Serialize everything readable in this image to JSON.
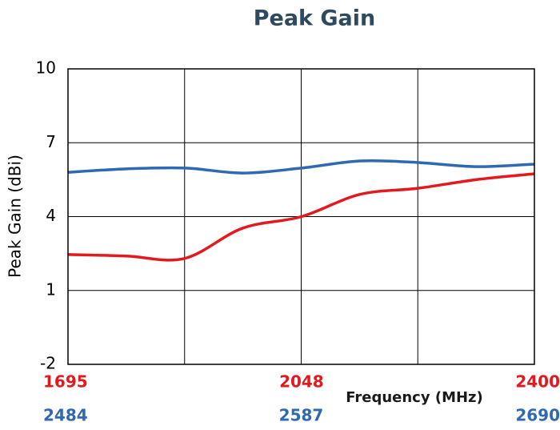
{
  "chart_data": {
    "type": "line",
    "title": "Peak Gain",
    "xlabel": "Frequency (MHz)",
    "ylabel": "Peak Gain (dBi)",
    "xlim": [
      1695,
      2400
    ],
    "xticks": [
      1695,
      2048,
      2400
    ],
    "x_color": "#e3191e",
    "x2lim": [
      2484,
      2690
    ],
    "x2ticks": [
      2484,
      2587,
      2690
    ],
    "x2_color": "#2f69b1",
    "xgrid": [
      1695,
      1871.25,
      2047.5,
      2223.75,
      2400
    ],
    "ylim": [
      -2,
      10
    ],
    "yticks": [
      -2,
      1,
      4,
      7,
      10
    ],
    "grid": true,
    "series": [
      {
        "color": "#e3191e",
        "axis": "x",
        "x": [
          1695,
          1783,
          1871,
          1959,
          2048,
          2136,
          2224,
          2312,
          2400
        ],
        "values": [
          2.46,
          2.4,
          2.3,
          3.53,
          4.0,
          4.9,
          5.15,
          5.5,
          5.74
        ]
      },
      {
        "color": "#2f69b1",
        "axis": "x2",
        "x": [
          2484,
          2510,
          2536,
          2561,
          2587,
          2613,
          2638,
          2664,
          2690
        ],
        "values": [
          5.8,
          5.94,
          5.97,
          5.77,
          5.97,
          6.26,
          6.2,
          6.03,
          6.13
        ]
      }
    ]
  }
}
